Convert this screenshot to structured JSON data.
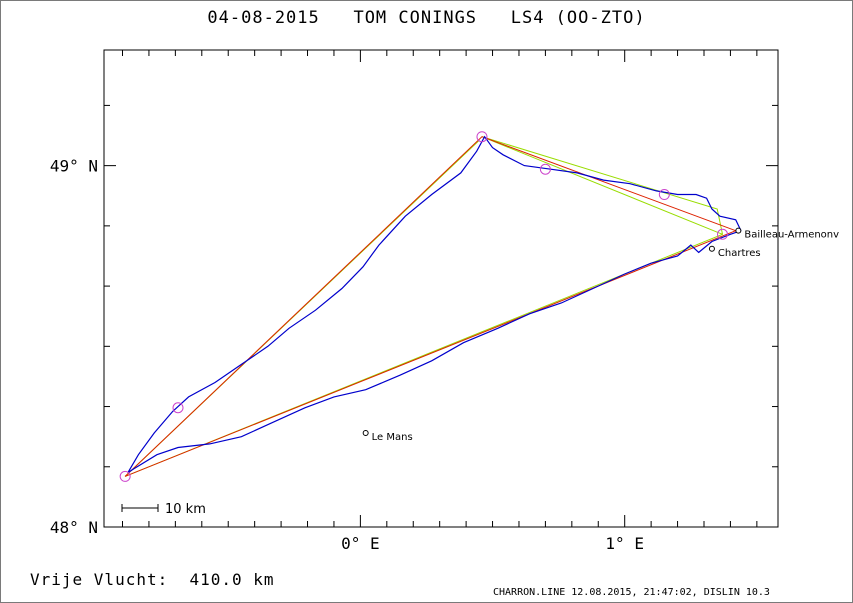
{
  "title": "04-08-2015   TOM CONINGS   LS4 (OO-ZTO)",
  "footer": {
    "distance": "Vrije Vlucht:  410.0 km",
    "credit": "CHARRON.LINE 12.08.2015, 21:47:02, DISLIN 10.3"
  },
  "chart_data": {
    "type": "line",
    "title": "04-08-2015   TOM CONINGS   LS4 (OO-ZTO)",
    "xlim": [
      -0.97,
      1.58
    ],
    "ylim": [
      48.0,
      49.32
    ],
    "x_ticks": [
      {
        "value": 0,
        "label": "0° E"
      },
      {
        "value": 1,
        "label": "1° E"
      }
    ],
    "y_ticks": [
      {
        "value": 48,
        "label": "48° N"
      },
      {
        "value": 49,
        "label": "49° N"
      }
    ],
    "grid": false,
    "scale_bar": "10 km",
    "colors": {
      "track": "#0000cc",
      "course": "#dd2200",
      "optimized": "#99dd00",
      "turnpoint": "#cc44cc",
      "city": "#000000"
    },
    "cities": [
      {
        "name": "Bailleau-Armenonv",
        "lon": 1.43,
        "lat": 48.82
      },
      {
        "name": "Chartres",
        "lon": 1.33,
        "lat": 48.77
      },
      {
        "name": "Le Mans",
        "lon": 0.02,
        "lat": 48.26
      }
    ],
    "turnpoints": [
      {
        "lon": 1.37,
        "lat": 48.81
      },
      {
        "lon": 0.46,
        "lat": 49.08
      },
      {
        "lon": 0.7,
        "lat": 48.99
      },
      {
        "lon": 1.15,
        "lat": 48.92
      },
      {
        "lon": -0.69,
        "lat": 48.33
      },
      {
        "lon": -0.89,
        "lat": 48.14
      }
    ],
    "course_line": [
      [
        1.42,
        48.82
      ],
      [
        0.46,
        49.08
      ],
      [
        -0.89,
        48.14
      ],
      [
        1.42,
        48.82
      ]
    ],
    "optimized_line": [
      [
        1.37,
        48.81
      ],
      [
        0.46,
        49.08
      ],
      [
        1.35,
        48.88
      ],
      [
        1.37,
        48.81
      ],
      [
        -0.89,
        48.14
      ],
      [
        0.45,
        49.07
      ]
    ],
    "track": [
      [
        1.44,
        48.82
      ],
      [
        1.42,
        48.85
      ],
      [
        1.36,
        48.86
      ],
      [
        1.33,
        48.88
      ],
      [
        1.31,
        48.91
      ],
      [
        1.27,
        48.92
      ],
      [
        1.2,
        48.92
      ],
      [
        1.12,
        48.93
      ],
      [
        1.02,
        48.95
      ],
      [
        0.92,
        48.96
      ],
      [
        0.82,
        48.98
      ],
      [
        0.72,
        48.99
      ],
      [
        0.62,
        49.0
      ],
      [
        0.54,
        49.03
      ],
      [
        0.5,
        49.05
      ],
      [
        0.47,
        49.08
      ],
      [
        0.44,
        49.04
      ],
      [
        0.38,
        48.98
      ],
      [
        0.27,
        48.92
      ],
      [
        0.17,
        48.86
      ],
      [
        0.07,
        48.78
      ],
      [
        0.01,
        48.72
      ],
      [
        -0.07,
        48.66
      ],
      [
        -0.17,
        48.6
      ],
      [
        -0.27,
        48.55
      ],
      [
        -0.35,
        48.5
      ],
      [
        -0.45,
        48.45
      ],
      [
        -0.55,
        48.4
      ],
      [
        -0.65,
        48.36
      ],
      [
        -0.71,
        48.32
      ],
      [
        -0.78,
        48.26
      ],
      [
        -0.84,
        48.2
      ],
      [
        -0.88,
        48.15
      ],
      [
        -0.86,
        48.16
      ],
      [
        -0.77,
        48.2
      ],
      [
        -0.69,
        48.22
      ],
      [
        -0.57,
        48.23
      ],
      [
        -0.45,
        48.25
      ],
      [
        -0.33,
        48.29
      ],
      [
        -0.21,
        48.33
      ],
      [
        -0.1,
        48.36
      ],
      [
        0.02,
        48.38
      ],
      [
        0.15,
        48.42
      ],
      [
        0.27,
        48.46
      ],
      [
        0.39,
        48.51
      ],
      [
        0.52,
        48.55
      ],
      [
        0.64,
        48.59
      ],
      [
        0.76,
        48.62
      ],
      [
        0.88,
        48.66
      ],
      [
        1.0,
        48.7
      ],
      [
        1.1,
        48.73
      ],
      [
        1.2,
        48.75
      ],
      [
        1.25,
        48.78
      ],
      [
        1.28,
        48.76
      ],
      [
        1.33,
        48.79
      ],
      [
        1.4,
        48.81
      ],
      [
        1.44,
        48.82
      ]
    ]
  }
}
